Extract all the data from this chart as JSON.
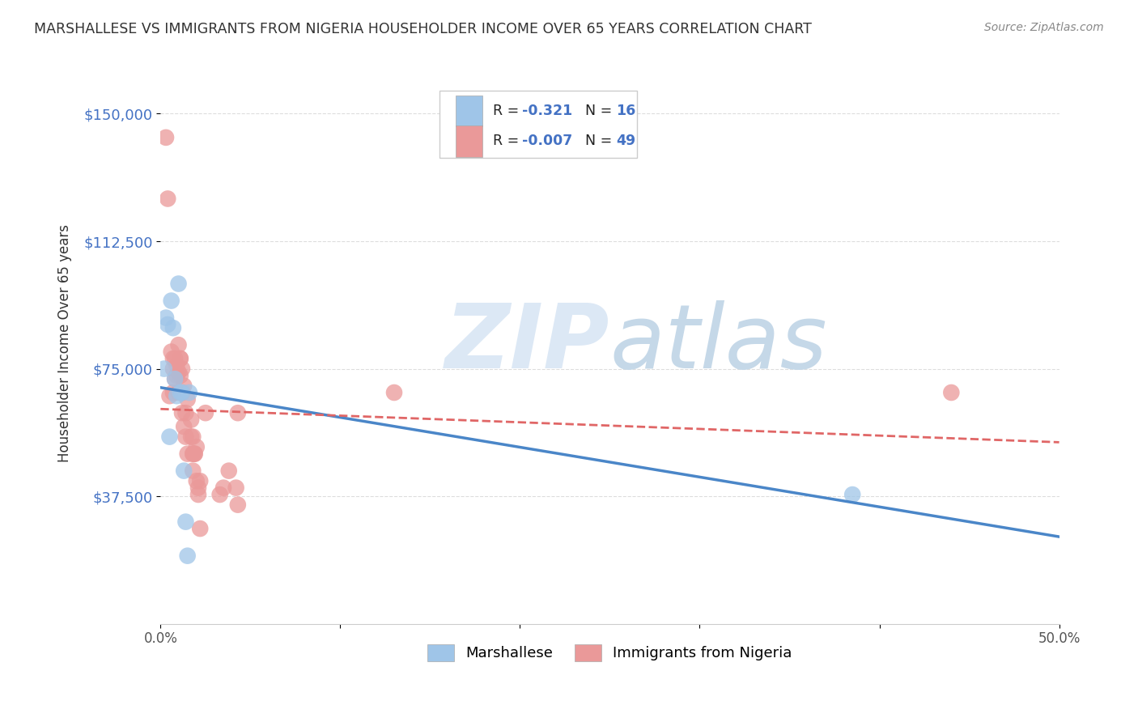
{
  "title": "MARSHALLESE VS IMMIGRANTS FROM NIGERIA HOUSEHOLDER INCOME OVER 65 YEARS CORRELATION CHART",
  "source": "Source: ZipAtlas.com",
  "ylabel": "Householder Income Over 65 years",
  "xlim": [
    0.0,
    0.5
  ],
  "ylim": [
    0,
    165000
  ],
  "yticks": [
    37500,
    75000,
    112500,
    150000
  ],
  "ytick_labels": [
    "$37,500",
    "$75,000",
    "$112,500",
    "$150,000"
  ],
  "xticks": [
    0.0,
    0.1,
    0.2,
    0.3,
    0.4,
    0.5
  ],
  "xtick_labels": [
    "0.0%",
    "",
    "",
    "",
    "",
    "50.0%"
  ],
  "blue_color": "#9fc5e8",
  "pink_color": "#ea9999",
  "blue_line_color": "#4a86c8",
  "pink_line_color": "#e06666",
  "grid_color": "#dddddd",
  "watermark_color": "#dce8f5",
  "marshallese_x": [
    0.002,
    0.003,
    0.004,
    0.005,
    0.006,
    0.007,
    0.008,
    0.009,
    0.01,
    0.011,
    0.012,
    0.013,
    0.014,
    0.015,
    0.016,
    0.385
  ],
  "marshallese_y": [
    75000,
    90000,
    88000,
    55000,
    95000,
    87000,
    72000,
    67000,
    100000,
    68000,
    68000,
    45000,
    30000,
    20000,
    68000,
    38000
  ],
  "nigeria_x": [
    0.003,
    0.004,
    0.005,
    0.006,
    0.007,
    0.007,
    0.007,
    0.008,
    0.008,
    0.009,
    0.009,
    0.01,
    0.01,
    0.01,
    0.011,
    0.011,
    0.011,
    0.012,
    0.012,
    0.012,
    0.013,
    0.013,
    0.014,
    0.014,
    0.015,
    0.015,
    0.017,
    0.017,
    0.018,
    0.018,
    0.018,
    0.018,
    0.019,
    0.019,
    0.02,
    0.02,
    0.021,
    0.021,
    0.022,
    0.022,
    0.025,
    0.033,
    0.035,
    0.038,
    0.042,
    0.043,
    0.043,
    0.13,
    0.44
  ],
  "nigeria_y": [
    143000,
    125000,
    67000,
    80000,
    75000,
    68000,
    78000,
    72000,
    78000,
    73000,
    76000,
    74000,
    68000,
    82000,
    78000,
    73000,
    78000,
    75000,
    68000,
    62000,
    58000,
    70000,
    62000,
    55000,
    50000,
    66000,
    60000,
    55000,
    50000,
    50000,
    45000,
    55000,
    50000,
    50000,
    42000,
    52000,
    40000,
    38000,
    42000,
    28000,
    62000,
    38000,
    40000,
    45000,
    40000,
    35000,
    62000,
    68000,
    68000
  ]
}
